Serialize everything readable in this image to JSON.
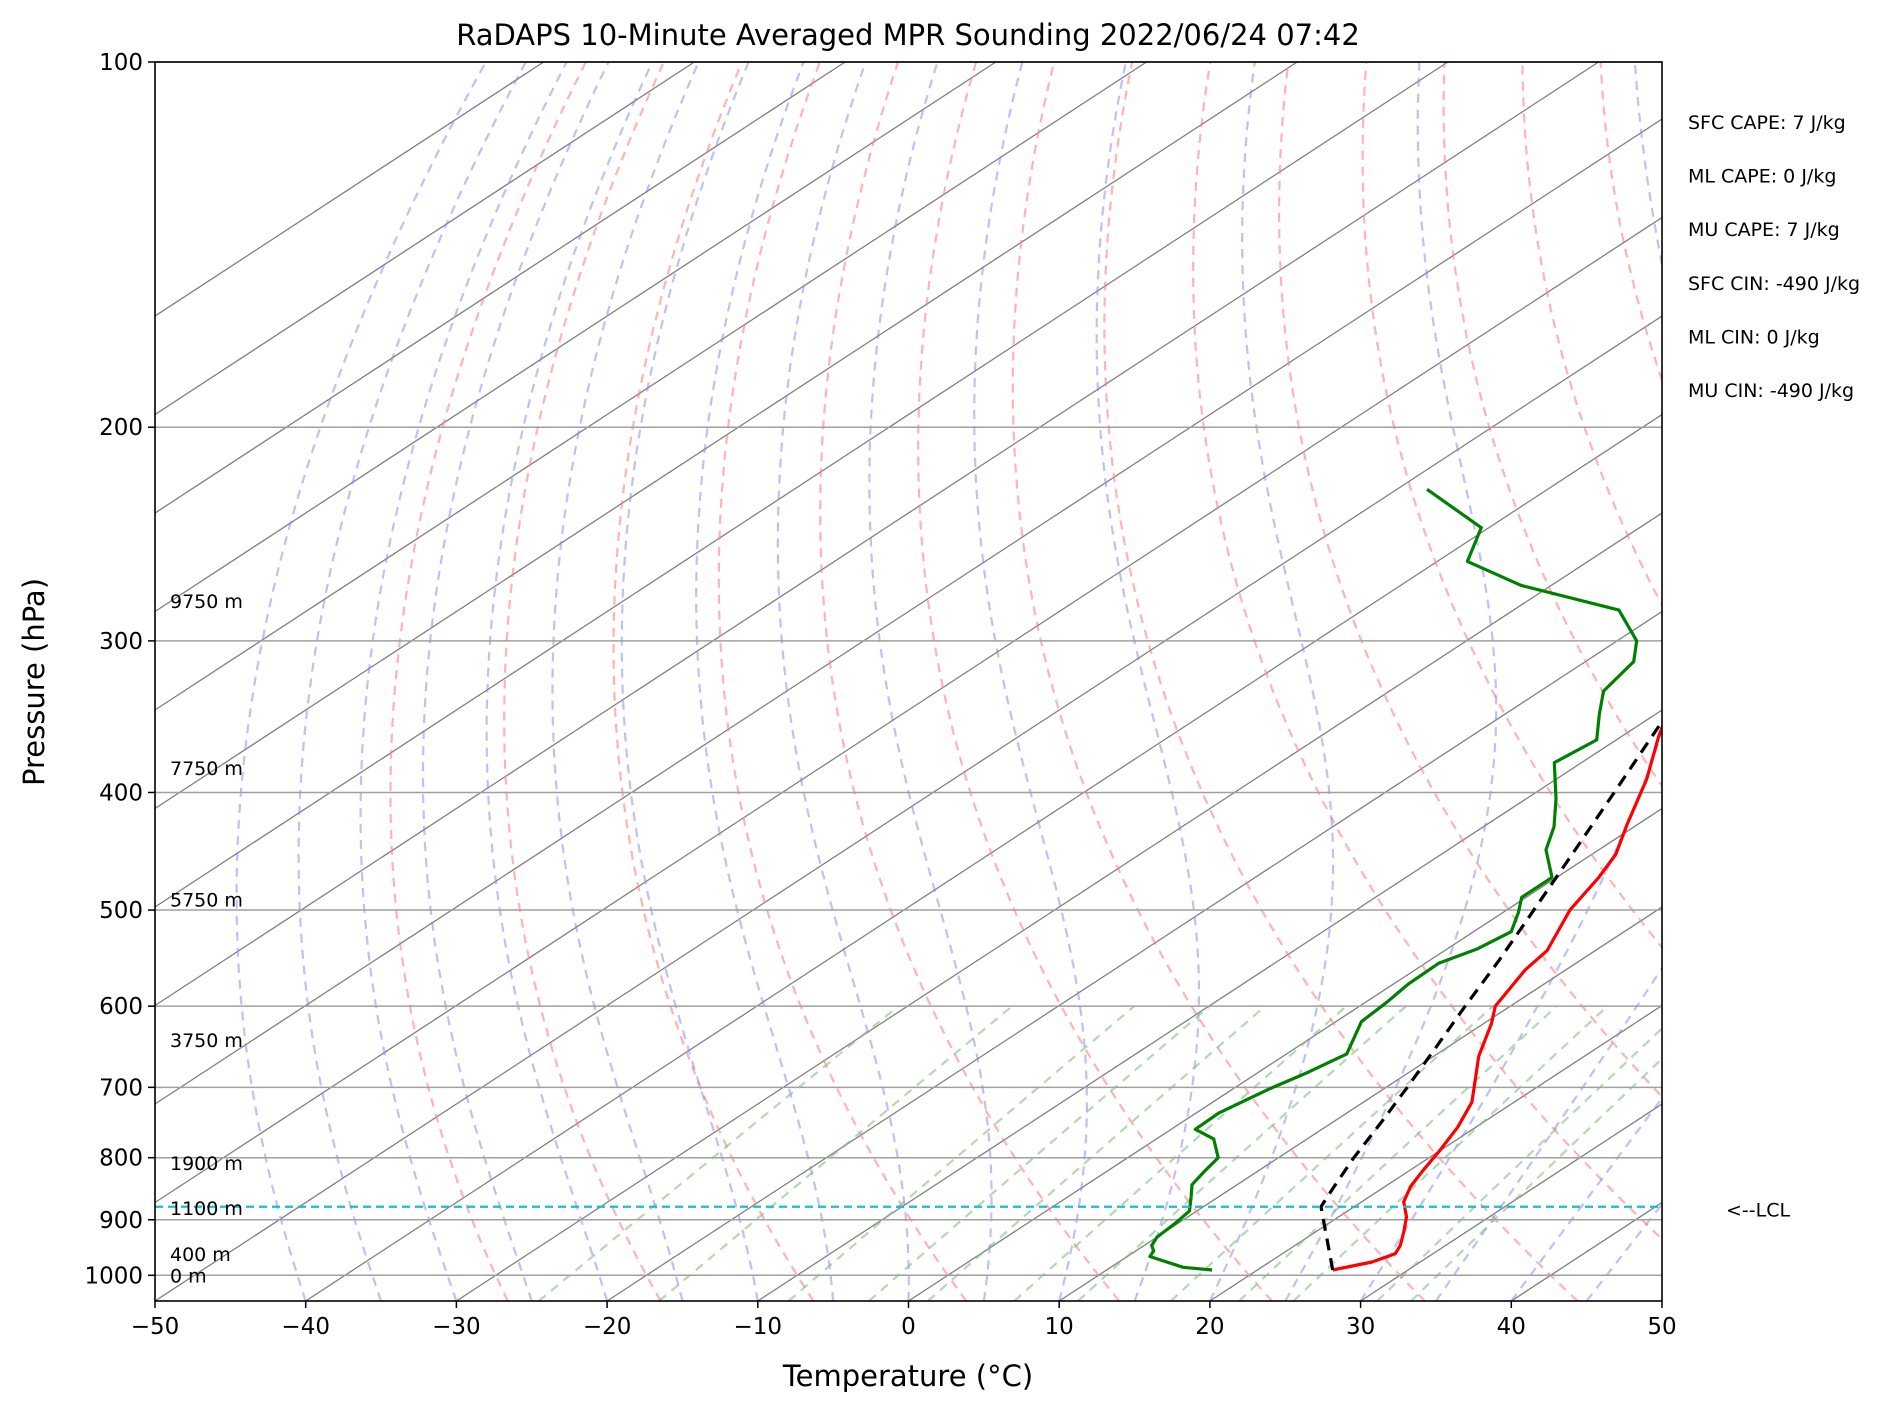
{
  "chart_data": {
    "type": "skew-t",
    "title": "RaDAPS 10-Minute Averaged MPR Sounding 2022/06/24 07:42",
    "xlabel": "Temperature (°C)",
    "ylabel": "Pressure (hPa)",
    "xlim": [
      -50,
      50
    ],
    "ylim": [
      1050,
      100
    ],
    "y_scale": "log",
    "x_ticks": [
      -50,
      -40,
      -30,
      -20,
      -10,
      0,
      10,
      20,
      30,
      40,
      50
    ],
    "x_tick_labels": [
      "−50",
      "−40",
      "−30",
      "−20",
      "−10",
      "0",
      "10",
      "20",
      "30",
      "40",
      "50"
    ],
    "y_ticks": [
      1000,
      900,
      800,
      700,
      600,
      500,
      400,
      300,
      200,
      100
    ],
    "y_tick_labels": [
      "1000",
      "900",
      "800",
      "700",
      "600",
      "500",
      "400",
      "300",
      "200",
      "100"
    ],
    "grid": true,
    "colors": {
      "temperature": "#ff0000",
      "dewpoint": "#008000",
      "parcel": "#000000",
      "lcl": "#17becf",
      "isotherm": "#808080",
      "dry_adiabat": "#ff8080",
      "moist_adiabat": "#8080ff",
      "mixing_ratio": "#80c080"
    },
    "series": [
      {
        "type": "temperature",
        "points": [
          {
            "p": 990,
            "t": 25.0
          },
          {
            "p": 975,
            "t": 26.8
          },
          {
            "p": 960,
            "t": 27.5
          },
          {
            "p": 945,
            "t": 27.0
          },
          {
            "p": 920,
            "t": 25.8
          },
          {
            "p": 895,
            "t": 24.5
          },
          {
            "p": 870,
            "t": 22.8
          },
          {
            "p": 845,
            "t": 21.7
          },
          {
            "p": 820,
            "t": 20.9
          },
          {
            "p": 790,
            "t": 20.0
          },
          {
            "p": 755,
            "t": 18.8
          },
          {
            "p": 720,
            "t": 17.2
          },
          {
            "p": 695,
            "t": 15.5
          },
          {
            "p": 660,
            "t": 13.0
          },
          {
            "p": 620,
            "t": 10.5
          },
          {
            "p": 600,
            "t": 9.0
          },
          {
            "p": 560,
            "t": 7.3
          },
          {
            "p": 540,
            "t": 6.8
          },
          {
            "p": 500,
            "t": 4.2
          },
          {
            "p": 470,
            "t": 2.8
          },
          {
            "p": 450,
            "t": 1.6
          },
          {
            "p": 425,
            "t": -0.7
          },
          {
            "p": 390,
            "t": -4.0
          },
          {
            "p": 360,
            "t": -7.5
          },
          {
            "p": 330,
            "t": -11.0
          },
          {
            "p": 295,
            "t": -13.5
          },
          {
            "p": 275,
            "t": -15.2
          }
        ]
      },
      {
        "type": "dewpoint",
        "points": [
          {
            "p": 990,
            "t": 17.0
          },
          {
            "p": 985,
            "t": 14.8
          },
          {
            "p": 965,
            "t": 11.5
          },
          {
            "p": 955,
            "t": 11.2
          },
          {
            "p": 945,
            "t": 10.5
          },
          {
            "p": 930,
            "t": 10.0
          },
          {
            "p": 905,
            "t": 9.8
          },
          {
            "p": 885,
            "t": 9.5
          },
          {
            "p": 862,
            "t": 8.2
          },
          {
            "p": 842,
            "t": 7.0
          },
          {
            "p": 822,
            "t": 6.5
          },
          {
            "p": 800,
            "t": 6.0
          },
          {
            "p": 772,
            "t": 3.8
          },
          {
            "p": 758,
            "t": 1.6
          },
          {
            "p": 735,
            "t": 1.5
          },
          {
            "p": 702,
            "t": 2.4
          },
          {
            "p": 680,
            "t": 3.3
          },
          {
            "p": 657,
            "t": 4.0
          },
          {
            "p": 618,
            "t": 1.7
          },
          {
            "p": 595,
            "t": 1.4
          },
          {
            "p": 576,
            "t": 1.0
          },
          {
            "p": 553,
            "t": 0.9
          },
          {
            "p": 538,
            "t": 2.0
          },
          {
            "p": 521,
            "t": 2.5
          },
          {
            "p": 502,
            "t": 1.0
          },
          {
            "p": 488,
            "t": -0.3
          },
          {
            "p": 470,
            "t": -0.3
          },
          {
            "p": 446,
            "t": -3.5
          },
          {
            "p": 427,
            "t": -5.3
          },
          {
            "p": 405,
            "t": -8.0
          },
          {
            "p": 378,
            "t": -11.8
          },
          {
            "p": 362,
            "t": -11.3
          },
          {
            "p": 345,
            "t": -13.7
          },
          {
            "p": 330,
            "t": -15.8
          },
          {
            "p": 312,
            "t": -16.8
          },
          {
            "p": 300,
            "t": -18.7
          },
          {
            "p": 283,
            "t": -23.0
          },
          {
            "p": 270,
            "t": -32.0
          },
          {
            "p": 258,
            "t": -38.0
          },
          {
            "p": 242,
            "t": -40.5
          },
          {
            "p": 225,
            "t": -48.0
          }
        ]
      },
      {
        "type": "parcel",
        "points": [
          {
            "p": 990,
            "t": 25.0
          },
          {
            "p": 878,
            "t": 17.8
          },
          {
            "p": 850,
            "t": 16.8
          },
          {
            "p": 800,
            "t": 15.0
          },
          {
            "p": 750,
            "t": 13.3
          },
          {
            "p": 700,
            "t": 11.4
          },
          {
            "p": 650,
            "t": 9.3
          },
          {
            "p": 600,
            "t": 7.0
          },
          {
            "p": 550,
            "t": 4.6
          },
          {
            "p": 500,
            "t": 1.8
          },
          {
            "p": 450,
            "t": -1.3
          },
          {
            "p": 400,
            "t": -4.8
          },
          {
            "p": 350,
            "t": -8.8
          },
          {
            "p": 300,
            "t": -13.8
          },
          {
            "p": 275,
            "t": -17.8
          }
        ]
      }
    ],
    "lcl": {
      "p": 878,
      "label": "<--LCL"
    },
    "height_labels": [
      {
        "p": 1000,
        "label": "0 m"
      },
      {
        "p": 960,
        "label": "400 m"
      },
      {
        "p": 880,
        "label": "1100 m"
      },
      {
        "p": 808,
        "label": "1900 m"
      },
      {
        "p": 640,
        "label": "3750 m"
      },
      {
        "p": 490,
        "label": "5750 m"
      },
      {
        "p": 382,
        "label": "7750 m"
      },
      {
        "p": 278,
        "label": "9750 m"
      }
    ],
    "indices": [
      "SFC CAPE: 7 J/kg",
      "ML CAPE: 0 J/kg",
      "MU CAPE: 7 J/kg",
      "SFC CIN: -490 J/kg",
      "ML CIN: 0 J/kg",
      "MU CIN: -490 J/kg"
    ]
  }
}
